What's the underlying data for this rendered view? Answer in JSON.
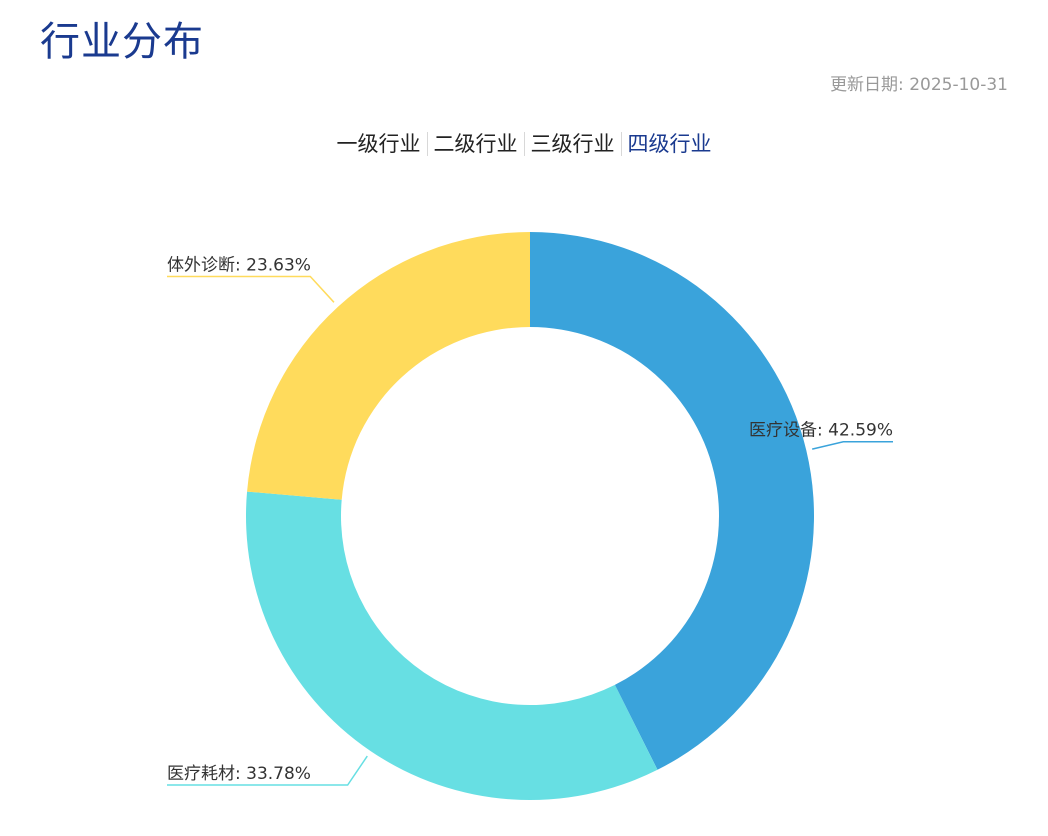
{
  "header": {
    "title": "行业分布",
    "update_label": "更新日期: 2025-10-31"
  },
  "tabs": [
    {
      "label": "一级行业",
      "active": false
    },
    {
      "label": "二级行业",
      "active": false
    },
    {
      "label": "三级行业",
      "active": false
    },
    {
      "label": "四级行业",
      "active": true
    }
  ],
  "colors": {
    "title": "#1a3a8f",
    "active_tab": "#1a3a8f"
  },
  "chart_data": {
    "type": "pie",
    "variant": "donut",
    "title": "",
    "slices": [
      {
        "name": "医疗设备",
        "value": 42.59,
        "label": "医疗设备: 42.59%",
        "color": "#3aa3db"
      },
      {
        "name": "医疗耗材",
        "value": 33.78,
        "label": "医疗耗材: 33.78%",
        "color": "#67dfe3"
      },
      {
        "name": "体外诊断",
        "value": 23.63,
        "label": "体外诊断: 23.63%",
        "color": "#ffdb5c"
      }
    ],
    "legend": "none",
    "start_angle": "12 o'clock",
    "direction": "clockwise"
  }
}
